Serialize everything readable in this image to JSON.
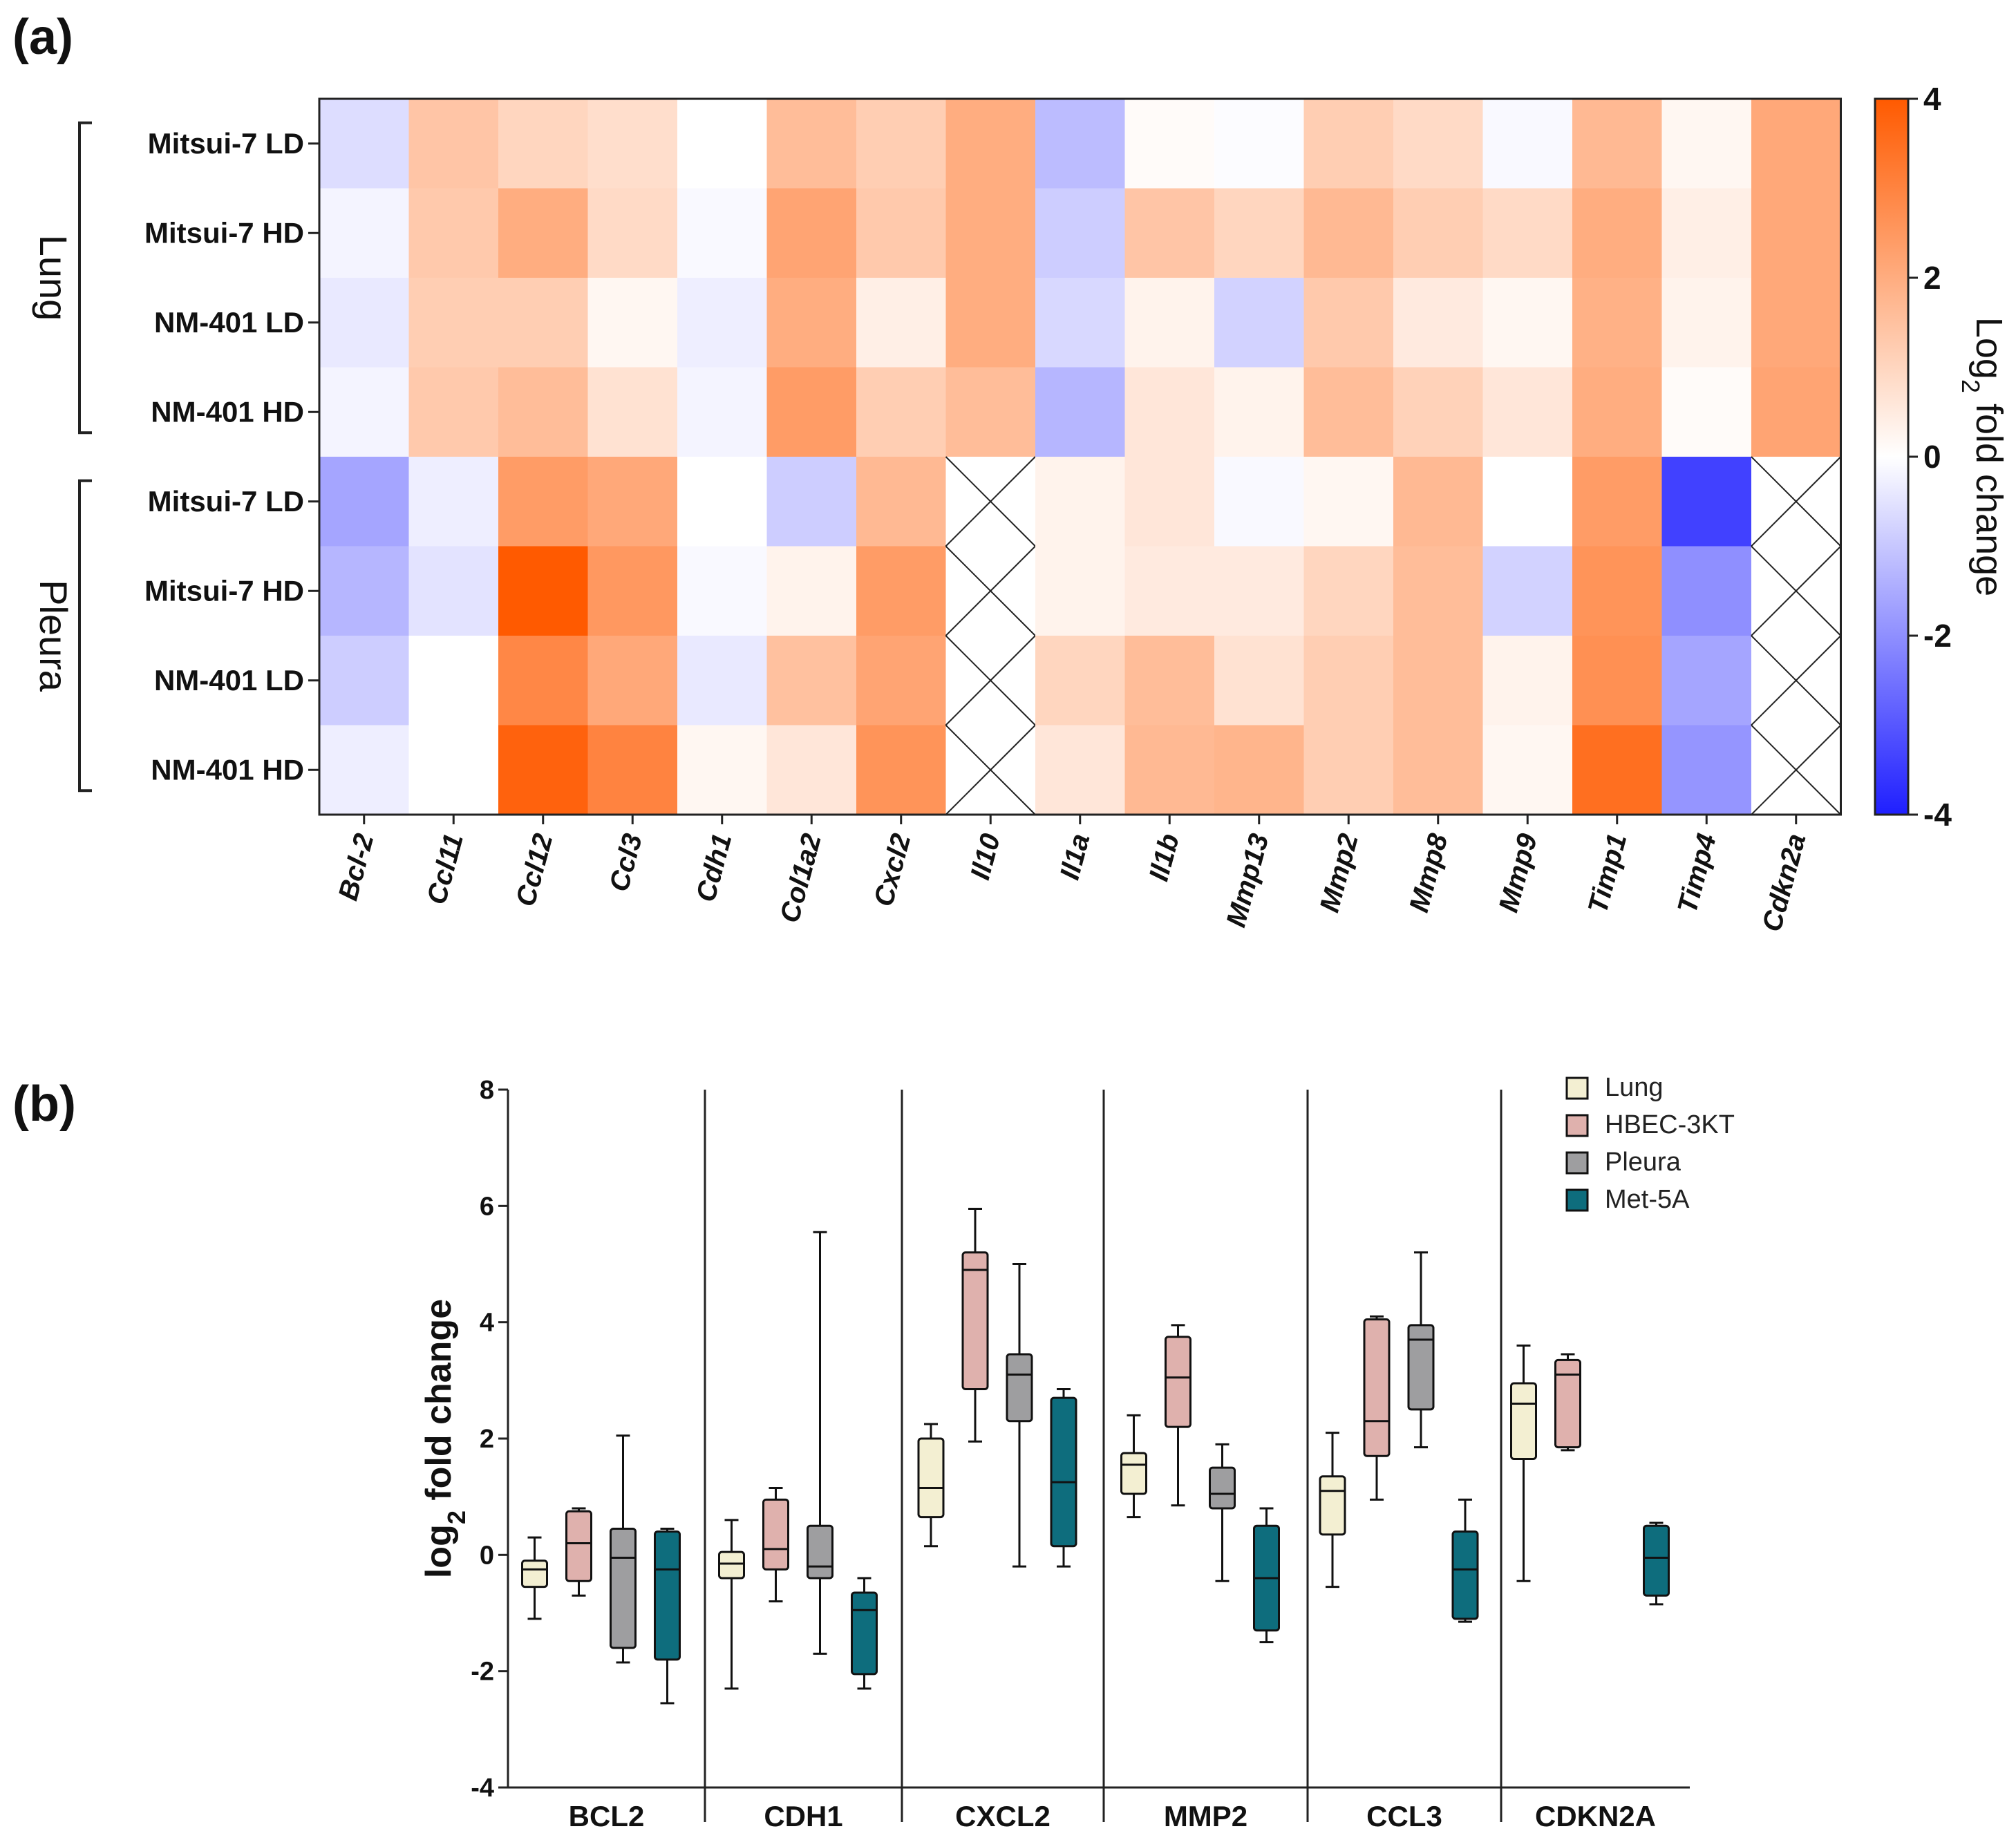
{
  "panel_a_label": "(a)",
  "panel_b_label": "(b)",
  "chart_data": [
    {
      "type": "heatmap",
      "panel": "(a)",
      "groups": [
        {
          "name": "Lung",
          "rows": [
            "Mitsui-7 LD",
            "Mitsui-7 HD",
            "NM-401 LD",
            "NM-401 HD"
          ]
        },
        {
          "name": "Pleura",
          "rows": [
            "Mitsui-7 LD",
            "Mitsui-7 HD",
            "NM-401 LD",
            "NM-401 HD"
          ]
        }
      ],
      "columns": [
        "Bcl-2",
        "Ccl11",
        "Ccl12",
        "Ccl3",
        "Cdh1",
        "Col1a2",
        "Cxcl2",
        "Il10",
        "Il1a",
        "Il1b",
        "Mmp13",
        "Mmp2",
        "Mmp8",
        "Mmp9",
        "Timp1",
        "Timp4",
        "Cdkn2a"
      ],
      "values": [
        [
          -0.6,
          1.4,
          1.0,
          0.8,
          0.0,
          1.6,
          1.2,
          2.0,
          -1.2,
          0.1,
          -0.05,
          1.2,
          0.9,
          -0.1,
          1.7,
          0.2,
          2.1
        ],
        [
          -0.2,
          1.3,
          2.0,
          0.9,
          -0.1,
          2.2,
          1.3,
          2.0,
          -0.9,
          1.4,
          1.0,
          1.7,
          1.2,
          0.9,
          2.0,
          0.4,
          2.1
        ],
        [
          -0.4,
          1.2,
          1.2,
          0.2,
          -0.3,
          2.0,
          0.4,
          2.0,
          -0.7,
          0.3,
          -0.8,
          1.3,
          0.5,
          0.2,
          1.9,
          0.3,
          2.1
        ],
        [
          -0.2,
          1.3,
          1.6,
          0.7,
          -0.2,
          2.4,
          1.2,
          1.6,
          -1.3,
          0.6,
          0.3,
          1.6,
          1.1,
          0.6,
          2.0,
          0.1,
          2.2
        ],
        [
          -1.6,
          -0.3,
          2.4,
          2.1,
          0.0,
          -0.9,
          1.7,
          null,
          0.3,
          0.6,
          -0.1,
          0.2,
          1.7,
          0.0,
          2.4,
          -3.4,
          null
        ],
        [
          -1.3,
          -0.5,
          4.1,
          2.5,
          -0.1,
          0.3,
          2.4,
          null,
          0.3,
          0.5,
          0.5,
          1.0,
          1.6,
          -0.8,
          2.6,
          -2.0,
          null
        ],
        [
          -0.9,
          0.0,
          2.9,
          2.1,
          -0.4,
          1.5,
          2.2,
          null,
          1.0,
          1.6,
          0.7,
          1.2,
          1.6,
          0.3,
          2.7,
          -1.6,
          null
        ],
        [
          -0.3,
          0.0,
          3.8,
          3.0,
          0.2,
          0.6,
          2.6,
          null,
          0.6,
          1.7,
          1.8,
          1.2,
          1.6,
          0.2,
          3.5,
          -1.9,
          null
        ]
      ],
      "colorbar": {
        "min": -4,
        "max": 4,
        "ticks": [
          "4",
          "2",
          "0",
          "-2",
          "-4"
        ],
        "label": "Log",
        "label_sub": "2",
        "label_rest": " fold change",
        "low_color": "#1f1fff",
        "mid_color": "#ffffff",
        "high_color": "#ff5a00"
      },
      "missing_marker": "X (crossed cell)"
    },
    {
      "type": "box",
      "panel": "(b)",
      "ylabel": "log",
      "ylabel_sub": "2",
      "ylabel_rest": " fold change",
      "ylim": [
        -4,
        8
      ],
      "yticks": [
        "8",
        "6",
        "4",
        "2",
        "0",
        "-2",
        "-4"
      ],
      "categories": [
        "BCL2",
        "CDH1",
        "CXCL2",
        "MMP2",
        "CCL3",
        "CDKN2A"
      ],
      "series": [
        {
          "name": "Lung",
          "color": "#f3efd2",
          "boxes": [
            {
              "min": -1.1,
              "q1": -0.55,
              "median": -0.25,
              "q3": -0.1,
              "max": 0.3
            },
            {
              "min": -2.3,
              "q1": -0.4,
              "median": -0.15,
              "q3": 0.05,
              "max": 0.6
            },
            {
              "min": 0.15,
              "q1": 0.65,
              "median": 1.15,
              "q3": 2.0,
              "max": 2.25
            },
            {
              "min": 0.65,
              "q1": 1.05,
              "median": 1.55,
              "q3": 1.75,
              "max": 2.4
            },
            {
              "min": -0.55,
              "q1": 0.35,
              "median": 1.1,
              "q3": 1.35,
              "max": 2.1
            },
            {
              "min": -0.45,
              "q1": 1.65,
              "median": 2.6,
              "q3": 2.95,
              "max": 3.6
            }
          ]
        },
        {
          "name": "HBEC-3KT",
          "color": "#dfb1ad",
          "boxes": [
            {
              "min": -0.7,
              "q1": -0.45,
              "median": 0.2,
              "q3": 0.75,
              "max": 0.8
            },
            {
              "min": -0.8,
              "q1": -0.25,
              "median": 0.1,
              "q3": 0.95,
              "max": 1.15
            },
            {
              "min": 1.95,
              "q1": 2.85,
              "median": 4.9,
              "q3": 5.2,
              "max": 5.95
            },
            {
              "min": 0.85,
              "q1": 2.2,
              "median": 3.05,
              "q3": 3.75,
              "max": 3.95
            },
            {
              "min": 0.95,
              "q1": 1.7,
              "median": 2.3,
              "q3": 4.05,
              "max": 4.1
            },
            {
              "min": 1.8,
              "q1": 1.85,
              "median": 3.1,
              "q3": 3.35,
              "max": 3.45
            }
          ]
        },
        {
          "name": "Pleura",
          "color": "#9e9ea0",
          "boxes": [
            {
              "min": -1.85,
              "q1": -1.6,
              "median": -0.05,
              "q3": 0.45,
              "max": 2.05
            },
            {
              "min": -1.7,
              "q1": -0.4,
              "median": -0.2,
              "q3": 0.5,
              "max": 5.55
            },
            {
              "min": -0.2,
              "q1": 2.3,
              "median": 3.1,
              "q3": 3.45,
              "max": 5.0
            },
            {
              "min": -0.45,
              "q1": 0.8,
              "median": 1.05,
              "q3": 1.5,
              "max": 1.9
            },
            {
              "min": 1.85,
              "q1": 2.5,
              "median": 3.7,
              "q3": 3.95,
              "max": 5.2
            },
            null
          ]
        },
        {
          "name": "Met-5A",
          "color": "#0e6d7d",
          "boxes": [
            {
              "min": -2.55,
              "q1": -1.8,
              "median": -0.25,
              "q3": 0.4,
              "max": 0.45
            },
            {
              "min": -2.3,
              "q1": -2.05,
              "median": -0.95,
              "q3": -0.65,
              "max": -0.4
            },
            {
              "min": -0.2,
              "q1": 0.15,
              "median": 1.25,
              "q3": 2.7,
              "max": 2.85
            },
            {
              "min": -1.5,
              "q1": -1.3,
              "median": -0.4,
              "q3": 0.5,
              "max": 0.8
            },
            {
              "min": -1.15,
              "q1": -1.1,
              "median": -0.25,
              "q3": 0.4,
              "max": 0.95
            },
            {
              "min": -0.85,
              "q1": -0.7,
              "median": -0.05,
              "q3": 0.5,
              "max": 0.55
            }
          ]
        }
      ],
      "legend_position": "top-right"
    }
  ]
}
